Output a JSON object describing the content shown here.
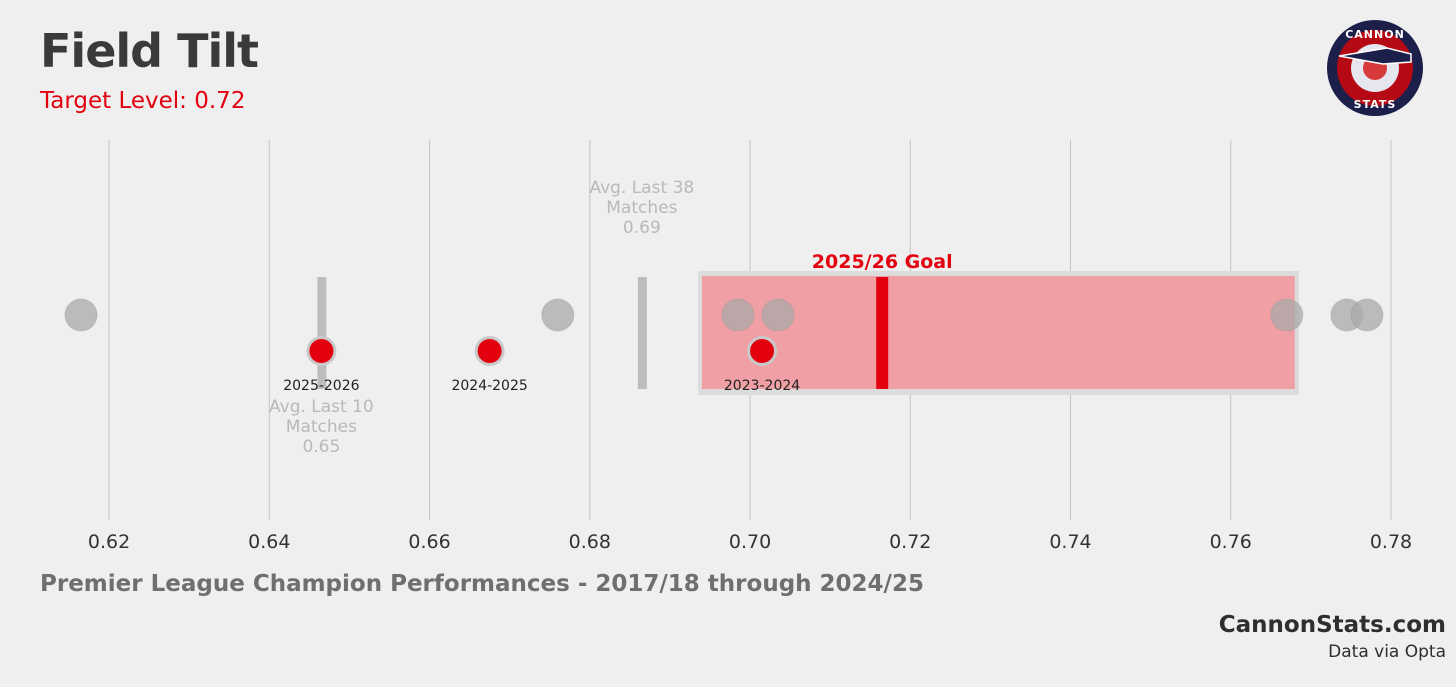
{
  "header": {
    "title": "Field Tilt",
    "subtitle": "Target Level: 0.72"
  },
  "footer": {
    "description": "Premier League Champion Performances - 2017/18 through 2024/25",
    "brand": "CannonStats.com",
    "source": "Data via Opta"
  },
  "logo": {
    "top_text": "CANNON",
    "bottom_text": "STATS"
  },
  "colors": {
    "background": "#efefef",
    "accent": "#e3000f",
    "grey_dot": "#a9a9a9",
    "goal_band": "#f0a0a5"
  },
  "chart_data": {
    "type": "scatter",
    "xlim": [
      0.614,
      0.782
    ],
    "xticks": [
      "0.62",
      "0.64",
      "0.66",
      "0.68",
      "0.70",
      "0.72",
      "0.74",
      "0.76",
      "0.78"
    ],
    "xtick_values": [
      0.62,
      0.64,
      0.66,
      0.68,
      0.7,
      0.72,
      0.74,
      0.76,
      0.78
    ],
    "grid": "vertical",
    "champion_values": [
      0.6165,
      0.676,
      0.6985,
      0.7035,
      0.767,
      0.7745,
      0.777
    ],
    "seasons": [
      {
        "label": "2025-2026",
        "value": 0.6465
      },
      {
        "label": "2024-2025",
        "value": 0.6675
      },
      {
        "label": "2023-2024",
        "value": 0.7015
      }
    ],
    "goal_range": [
      0.694,
      0.768
    ],
    "goal": {
      "label": "2025/26 Goal",
      "value": 0.7165
    },
    "averages": [
      {
        "label_lines": [
          "Avg. Last 10",
          "Matches",
          "0.65"
        ],
        "value": 0.6465,
        "label_position": "below"
      },
      {
        "label_lines": [
          "Avg. Last 38",
          "Matches",
          "0.69"
        ],
        "value": 0.6865,
        "label_position": "above"
      }
    ]
  }
}
